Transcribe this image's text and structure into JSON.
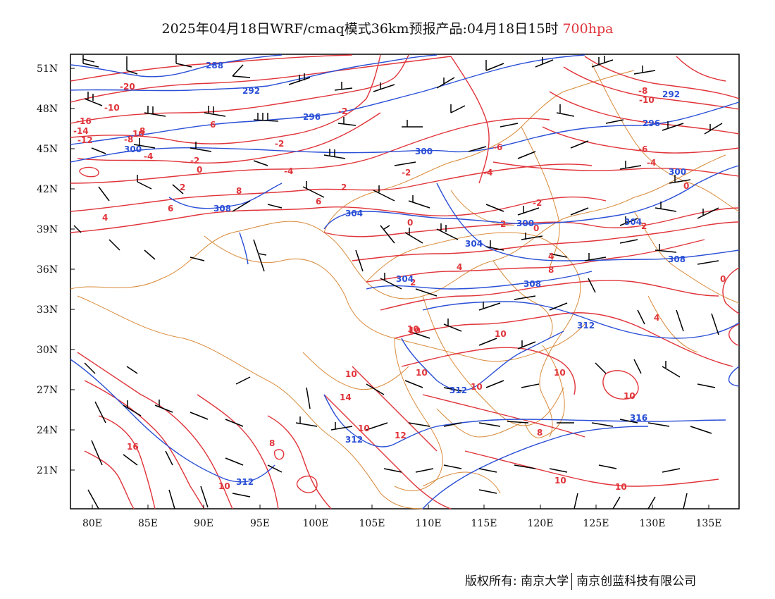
{
  "title": {
    "main": "2025年04月18日WRF/cmaq模式36km预报产品:04月18日15时",
    "level": "700hpa",
    "level_color": "#e0343a"
  },
  "axes": {
    "lat_labels": [
      "51N",
      "48N",
      "45N",
      "42N",
      "39N",
      "36N",
      "33N",
      "30N",
      "27N",
      "24N",
      "21N"
    ],
    "lon_labels": [
      "80E",
      "85E",
      "90E",
      "95E",
      "100E",
      "105E",
      "110E",
      "115E",
      "120E",
      "125E",
      "130E",
      "135E"
    ]
  },
  "legend_colors": {
    "temperature": "#e0343a",
    "geopotential_height": "#2a4fd6",
    "boundaries": "#d98a3a",
    "wind_barbs": "#000000"
  },
  "contour_labels": {
    "temperature": [
      "-20",
      "-16",
      "-14",
      "-12",
      "-10",
      "-8",
      "-4",
      "-2",
      "0",
      "2",
      "4",
      "6",
      "8",
      "10",
      "-2",
      "-4",
      "-6",
      "-8",
      "-10",
      "-12",
      "-2",
      "-6",
      "-4",
      "-2",
      "0",
      "2",
      "4",
      "6",
      "8",
      "4",
      "0",
      "2",
      "6",
      "-4",
      "-6",
      "-2",
      "0",
      "2",
      "4",
      "0",
      "2",
      "4",
      "6",
      "8",
      "10",
      "10",
      "10",
      "10",
      "10",
      "12",
      "14",
      "16",
      "10",
      "10",
      "10",
      "10",
      "10",
      "8",
      "8",
      "8",
      "6",
      "10",
      "10",
      "12",
      "-6",
      "2",
      "8",
      "4",
      "-8",
      "-12",
      "-10",
      "-8",
      "-6",
      "-4",
      "-2",
      "0",
      "-2",
      "2",
      "0",
      "4",
      "-2",
      "0",
      "2"
    ],
    "height": [
      "288",
      "292",
      "296",
      "300",
      "300",
      "304",
      "308",
      "304",
      "304",
      "308",
      "308",
      "312",
      "312",
      "312",
      "312",
      "316",
      "292",
      "296",
      "300",
      "304",
      "308",
      "288",
      "300"
    ]
  },
  "footer": {
    "copyright": "版权所有:",
    "org1": "南京大学",
    "org2": "南京创蓝科技有限公司"
  }
}
